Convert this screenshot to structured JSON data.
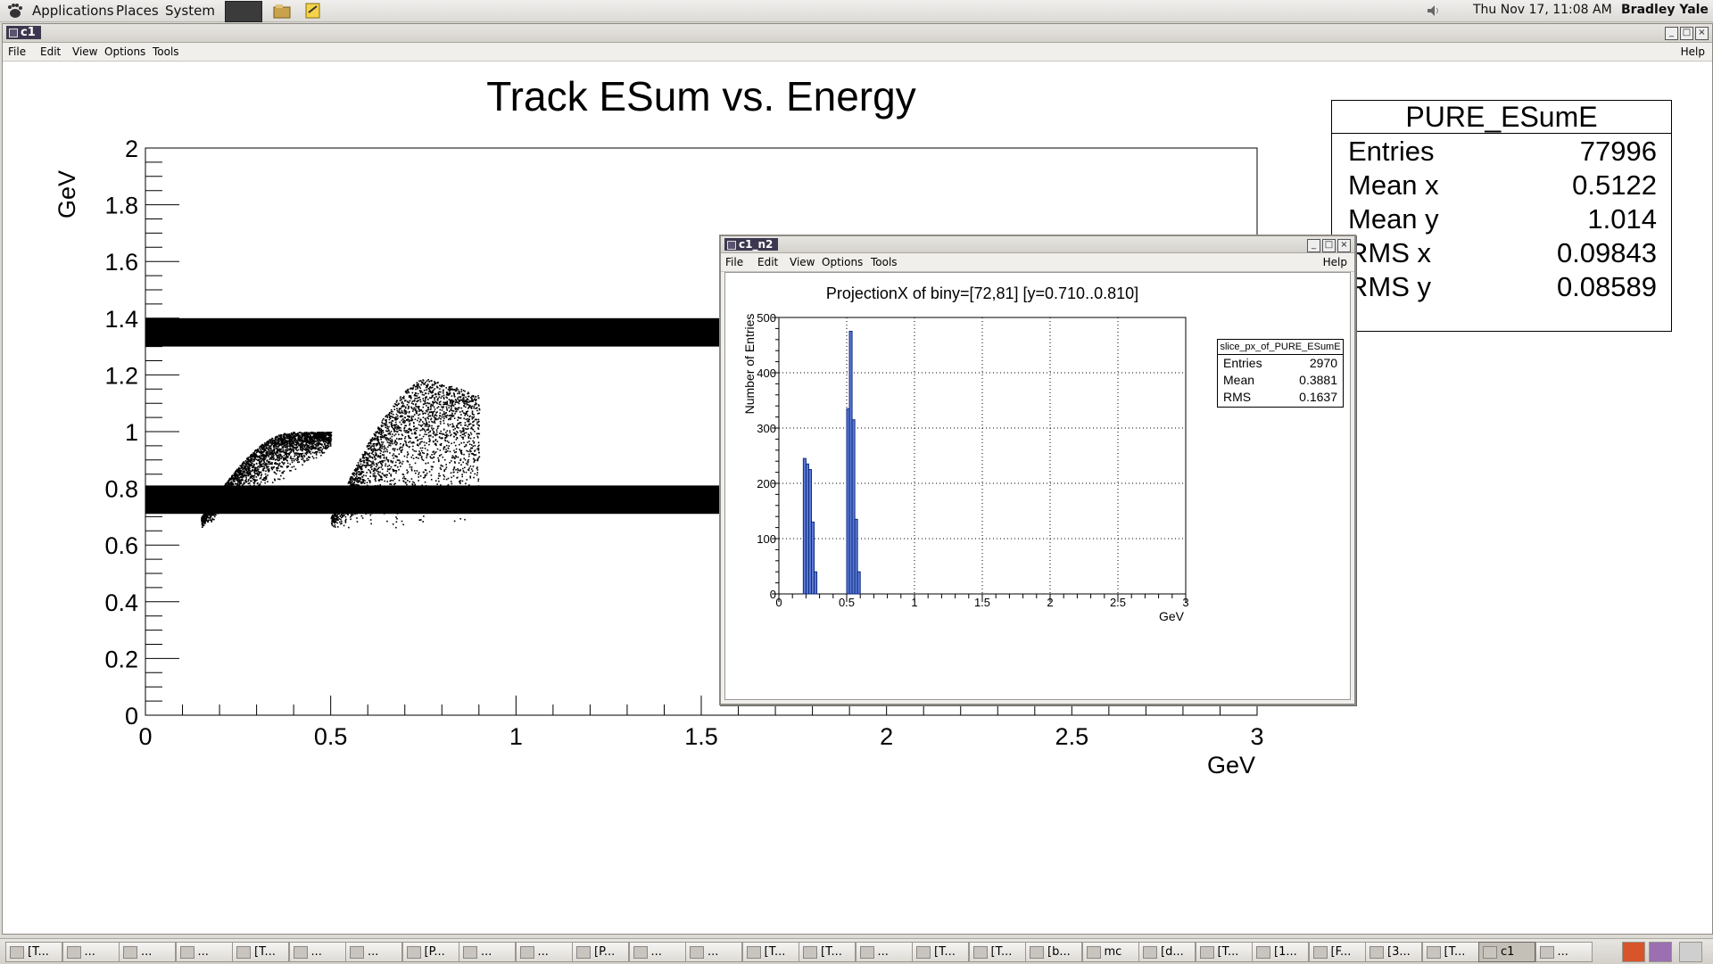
{
  "top_panel": {
    "menus": [
      "Applications",
      "Places",
      "System"
    ],
    "datetime": "Thu Nov 17, 11:08 AM",
    "user": "Bradley Yale"
  },
  "main_window": {
    "title": "c1",
    "menu": [
      "File",
      "Edit",
      "View",
      "Options",
      "Tools"
    ],
    "help": "Help",
    "controls": [
      "_",
      "□",
      "×"
    ]
  },
  "stats_main": {
    "title": "PURE_ESumE",
    "rows": [
      {
        "label": "Entries",
        "value": "77996"
      },
      {
        "label": "Mean x",
        "value": "0.5122"
      },
      {
        "label": "Mean y",
        "value": "1.014"
      },
      {
        "label": "RMS x",
        "value": "0.09843"
      },
      {
        "label": "RMS y",
        "value": "0.08589"
      }
    ]
  },
  "sub_window": {
    "title": "c1_n2",
    "menu": [
      "File",
      "Edit",
      "View",
      "Options",
      "Tools"
    ],
    "help": "Help",
    "controls": [
      "_",
      "□",
      "×"
    ]
  },
  "stats_sub": {
    "title": "slice_px_of_PURE_ESumE",
    "rows": [
      {
        "label": "Entries",
        "value": "2970"
      },
      {
        "label": "Mean",
        "value": "0.3881"
      },
      {
        "label": "RMS",
        "value": "0.1637"
      }
    ]
  },
  "chart_data": [
    {
      "type": "scatter",
      "title": "Track ESum vs. Energy",
      "xlabel": "GeV",
      "ylabel": "GeV",
      "xlim": [
        0,
        3
      ],
      "ylim": [
        0,
        2
      ],
      "x_ticks": [
        "0",
        "0.5",
        "1",
        "1.5",
        "2",
        "2.5",
        "3"
      ],
      "y_ticks": [
        "0",
        "0.2",
        "0.4",
        "0.6",
        "0.8",
        "1",
        "1.2",
        "1.4",
        "1.6",
        "1.8",
        "2"
      ],
      "bands": [
        {
          "y_from": 1.3,
          "y_to": 1.4,
          "x_from": 0,
          "x_to": 3
        },
        {
          "y_from": 0.71,
          "y_to": 0.81,
          "x_from": 0,
          "x_to": 3
        }
      ],
      "clusters": [
        {
          "x_from": 0.15,
          "x_to": 0.5,
          "y_base": 0.7,
          "y_top": 1.0
        },
        {
          "x_from": 0.5,
          "x_to": 0.9,
          "y_base": 0.7,
          "y_top": 1.2
        }
      ]
    },
    {
      "type": "bar",
      "title": "ProjectionX of biny=[72,81] [y=0.710..0.810]",
      "xlabel": "GeV",
      "ylabel": "Number of Entries",
      "xlim": [
        0,
        3
      ],
      "ylim": [
        0,
        500
      ],
      "x_ticks": [
        "0",
        "0.5",
        "1",
        "1.5",
        "2",
        "2.5",
        "3"
      ],
      "y_ticks": [
        "0",
        "100",
        "200",
        "300",
        "400",
        "500"
      ],
      "bin_width": 0.02,
      "bins": [
        {
          "x": 0.18,
          "value": 245
        },
        {
          "x": 0.2,
          "value": 235
        },
        {
          "x": 0.22,
          "value": 225
        },
        {
          "x": 0.24,
          "value": 130
        },
        {
          "x": 0.26,
          "value": 40
        },
        {
          "x": 0.5,
          "value": 335
        },
        {
          "x": 0.52,
          "value": 475
        },
        {
          "x": 0.54,
          "value": 315
        },
        {
          "x": 0.56,
          "value": 135
        },
        {
          "x": 0.58,
          "value": 40
        }
      ],
      "fill_color": "#5b7bd5"
    }
  ],
  "taskbar": {
    "items": [
      "[T...",
      "...",
      "...",
      "...",
      "[T...",
      "...",
      "...",
      "[P...",
      "...",
      "...",
      "[P...",
      "...",
      "...",
      "[T...",
      "[T...",
      "...",
      "[T...",
      "[T...",
      "[b...",
      "mc",
      "[d...",
      "[T...",
      "[1...",
      "[F...",
      "[3...",
      "[T...",
      "c1",
      "..."
    ]
  }
}
